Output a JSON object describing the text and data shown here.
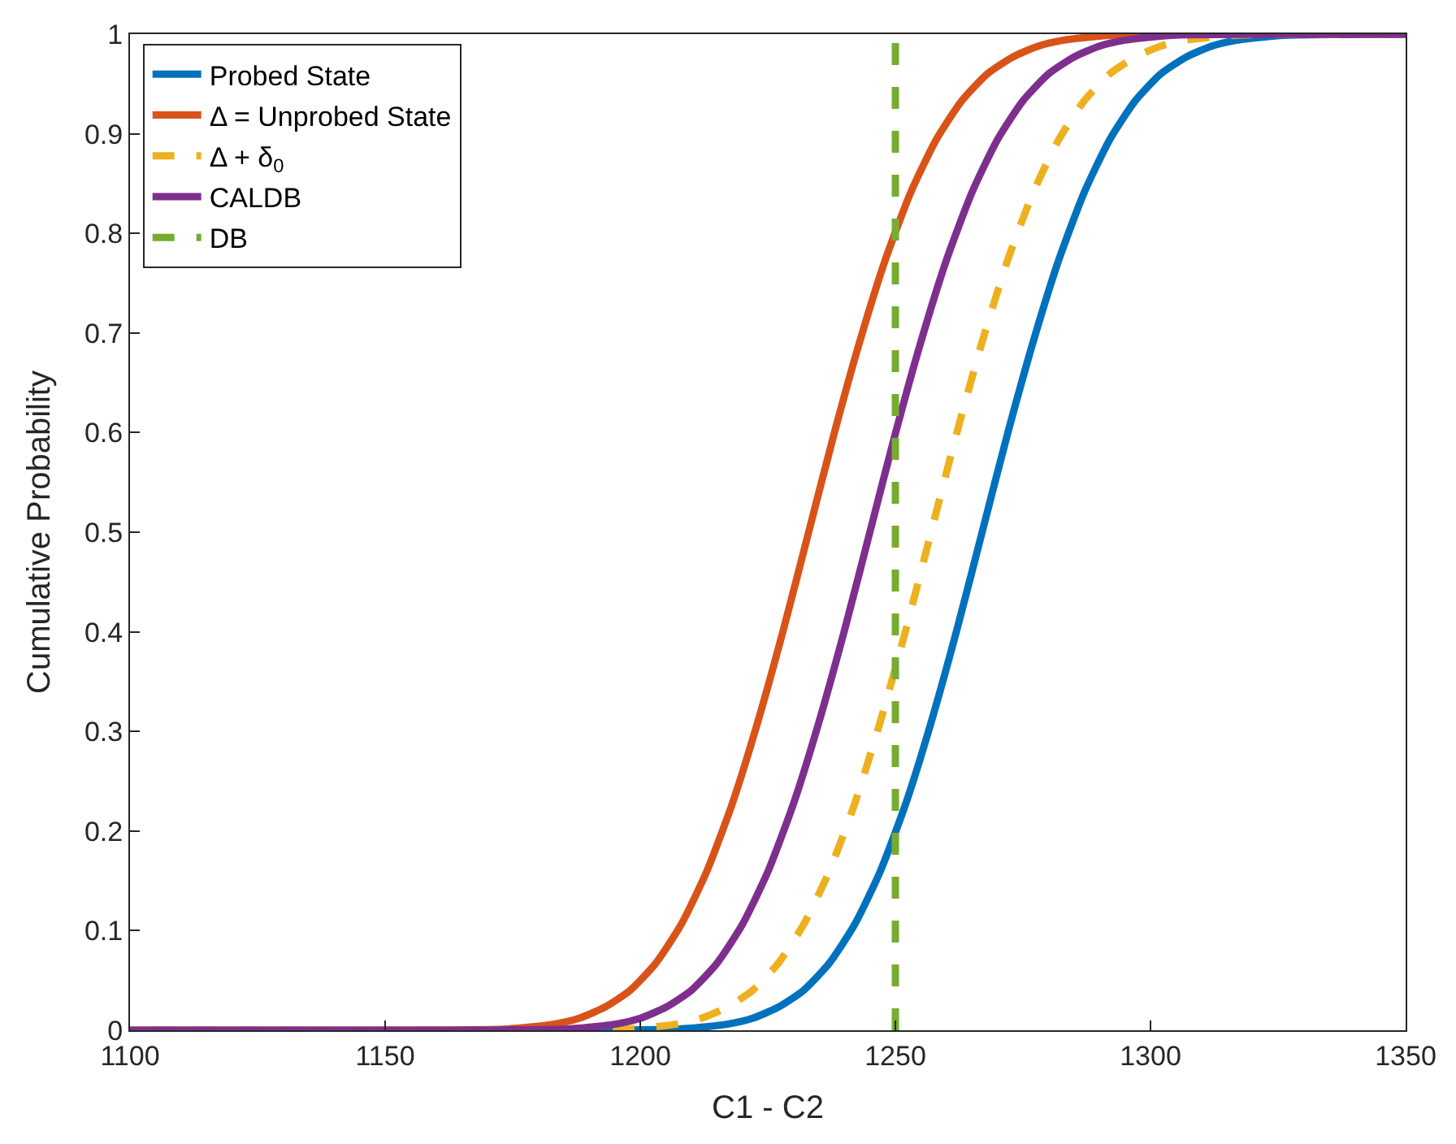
{
  "chart_data": {
    "type": "line",
    "xlabel": "C1 - C2",
    "ylabel": "Cumulative Probability",
    "xlim": [
      1100,
      1350
    ],
    "ylim": [
      0,
      1
    ],
    "xticks": [
      1100,
      1150,
      1200,
      1250,
      1300,
      1350
    ],
    "yticks": [
      0,
      0.1,
      0.2,
      0.3,
      0.4,
      0.5,
      0.6,
      0.7,
      0.8,
      0.9,
      1
    ],
    "grid": false,
    "legend": "top left",
    "marker": "none",
    "series": [
      {
        "name": "Probed State",
        "color": "#0072bd",
        "line_style": "solid",
        "x": [
          1100,
          1207,
          1212,
          1217,
          1222,
          1227,
          1232,
          1237,
          1242,
          1247,
          1252,
          1257,
          1262,
          1267,
          1272,
          1277,
          1282,
          1287,
          1292,
          1297,
          1302,
          1307,
          1312,
          1317,
          1322,
          1327,
          1350
        ],
        "values": [
          0,
          0.001,
          0.003,
          0.006,
          0.012,
          0.023,
          0.04,
          0.067,
          0.106,
          0.159,
          0.227,
          0.309,
          0.401,
          0.5,
          0.599,
          0.691,
          0.773,
          0.841,
          0.894,
          0.933,
          0.96,
          0.977,
          0.988,
          0.994,
          0.997,
          0.999,
          1
        ]
      },
      {
        "name": "Δ = Unprobed State",
        "color": "#d95319",
        "line_style": "solid",
        "x": [
          1100,
          1173,
          1178,
          1183,
          1188,
          1193,
          1198,
          1203,
          1208,
          1213,
          1218,
          1223,
          1228,
          1233,
          1238,
          1243,
          1248,
          1253,
          1258,
          1263,
          1268,
          1273,
          1278,
          1283,
          1288,
          1293,
          1350
        ],
        "values": [
          0,
          0.001,
          0.003,
          0.006,
          0.012,
          0.023,
          0.04,
          0.067,
          0.106,
          0.159,
          0.227,
          0.309,
          0.401,
          0.5,
          0.599,
          0.691,
          0.773,
          0.841,
          0.894,
          0.933,
          0.96,
          0.977,
          0.988,
          0.994,
          0.997,
          0.999,
          1
        ]
      },
      {
        "name": "Δ + δ$_{0}$",
        "color": "#edb120",
        "line_style": "dashed",
        "x": [
          1100,
          1197,
          1202,
          1207,
          1212,
          1217,
          1222,
          1227,
          1232,
          1237,
          1242,
          1247,
          1252,
          1257,
          1262,
          1267,
          1272,
          1277,
          1282,
          1287,
          1292,
          1297,
          1302,
          1307,
          1312,
          1317,
          1350
        ],
        "values": [
          0,
          0.001,
          0.003,
          0.006,
          0.012,
          0.023,
          0.04,
          0.067,
          0.106,
          0.159,
          0.227,
          0.309,
          0.401,
          0.5,
          0.599,
          0.691,
          0.773,
          0.841,
          0.894,
          0.933,
          0.96,
          0.977,
          0.988,
          0.994,
          0.997,
          0.999,
          1
        ]
      },
      {
        "name": "CALDB",
        "color": "#7e2f8e",
        "line_style": "solid",
        "x": [
          1100,
          1185,
          1190,
          1195,
          1200,
          1205,
          1210,
          1215,
          1220,
          1225,
          1230,
          1235,
          1240,
          1245,
          1250,
          1255,
          1260,
          1265,
          1270,
          1275,
          1280,
          1285,
          1290,
          1295,
          1300,
          1305,
          1350
        ],
        "values": [
          0,
          0.001,
          0.003,
          0.006,
          0.012,
          0.023,
          0.04,
          0.067,
          0.106,
          0.159,
          0.227,
          0.309,
          0.401,
          0.5,
          0.599,
          0.691,
          0.773,
          0.841,
          0.894,
          0.933,
          0.96,
          0.977,
          0.988,
          0.994,
          0.997,
          0.999,
          1
        ]
      },
      {
        "name": "DB",
        "color": "#77ac30",
        "line_style": "dashed",
        "x": [
          1250,
          1250
        ],
        "values": [
          0,
          1
        ]
      }
    ]
  }
}
